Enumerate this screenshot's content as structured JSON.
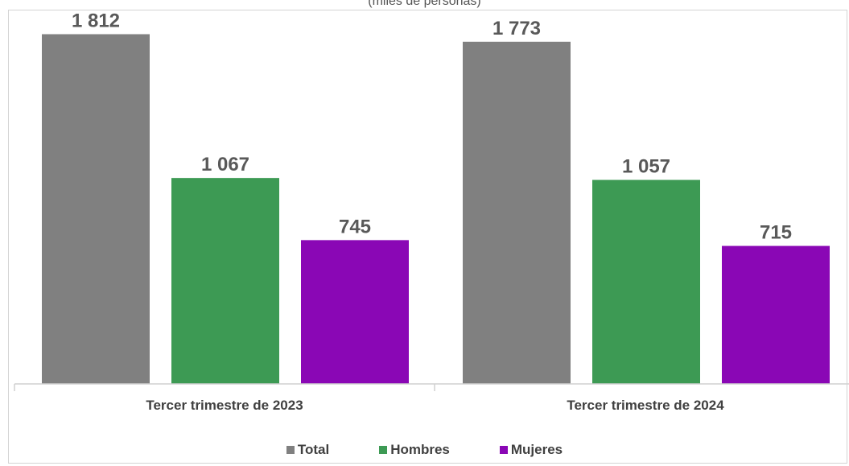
{
  "chart_data": {
    "type": "bar",
    "subtitle": "(miles de personas)",
    "categories": [
      "Tercer trimestre de 2023",
      "Tercer trimestre de 2024"
    ],
    "series": [
      {
        "name": "Total",
        "values": [
          1812,
          1773
        ],
        "labels": [
          "1 812",
          "1 773"
        ],
        "color": "#808080"
      },
      {
        "name": "Hombres",
        "values": [
          1067,
          1057
        ],
        "labels": [
          "1 067",
          "1 057"
        ],
        "color": "#3d9a54"
      },
      {
        "name": "Mujeres",
        "values": [
          745,
          715
        ],
        "labels": [
          "745",
          "715"
        ],
        "color": "#8a07b5"
      }
    ],
    "ylim": [
      0,
      1960
    ],
    "grid": false,
    "legend_position": "bottom"
  }
}
